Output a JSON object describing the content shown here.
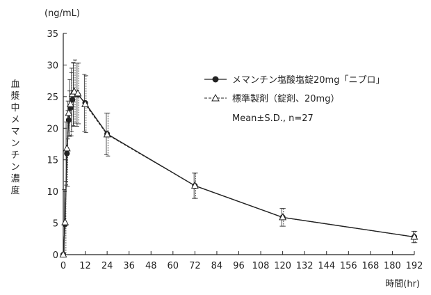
{
  "chart_data": {
    "type": "line",
    "unit_label": "(ng/mL)",
    "ylabel": "血漿中メマンチン濃度",
    "xlabel": "時間(hr)",
    "xlim": [
      0,
      192
    ],
    "ylim": [
      0,
      35
    ],
    "xticks": [
      0,
      12,
      24,
      36,
      48,
      60,
      72,
      84,
      96,
      108,
      120,
      132,
      144,
      156,
      168,
      180,
      192
    ],
    "yticks": [
      0,
      5,
      10,
      15,
      20,
      25,
      30,
      35
    ],
    "legend_position": "upper-right",
    "note": "Mean±S.D., n=27",
    "series": [
      {
        "name": "メマンチン塩酸塩錠20mg「ニプロ」",
        "marker": "filled-circle",
        "line": "solid",
        "x": [
          0,
          1,
          2,
          3,
          4,
          5,
          6,
          8,
          12,
          24,
          72,
          120,
          192
        ],
        "y": [
          0,
          4.8,
          16.0,
          21.3,
          23.2,
          24.5,
          25.3,
          25.3,
          24.0,
          19.1,
          10.9,
          5.9,
          2.8
        ],
        "sd": [
          0,
          5.5,
          5.0,
          3.0,
          4.5,
          5.0,
          5.0,
          5.0,
          4.5,
          3.3,
          2.0,
          1.4,
          0.9
        ]
      },
      {
        "name": "標準製剤（錠剤、20mg）",
        "marker": "open-triangle",
        "line": "dashed",
        "x": [
          0,
          1,
          2,
          3,
          4,
          5,
          6,
          8,
          12,
          24,
          72,
          120,
          192
        ],
        "y": [
          0,
          5.1,
          16.8,
          22.4,
          23.8,
          25.4,
          25.8,
          25.5,
          23.8,
          19.0,
          10.9,
          5.9,
          2.8
        ],
        "sd": [
          0,
          6.5,
          6.0,
          3.5,
          5.0,
          5.0,
          5.0,
          4.8,
          4.5,
          3.4,
          2.0,
          1.4,
          0.9
        ]
      }
    ]
  }
}
